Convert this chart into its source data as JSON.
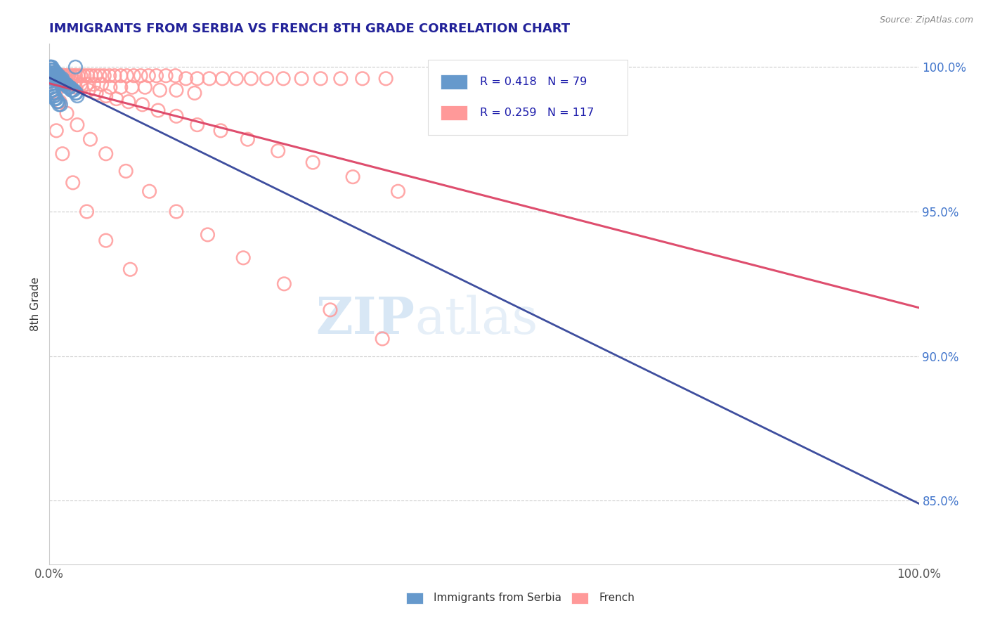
{
  "title": "IMMIGRANTS FROM SERBIA VS FRENCH 8TH GRADE CORRELATION CHART",
  "source_text": "Source: ZipAtlas.com",
  "ylabel": "8th Grade",
  "xlim": [
    0.0,
    1.0
  ],
  "ylim": [
    0.828,
    1.008
  ],
  "xticks": [
    0.0,
    0.25,
    0.5,
    0.75,
    1.0
  ],
  "xticklabels": [
    "0.0%",
    "",
    "",
    "",
    "100.0%"
  ],
  "yticks": [
    0.85,
    0.9,
    0.95,
    1.0
  ],
  "right_yticklabels": [
    "85.0%",
    "90.0%",
    "95.0%",
    "100.0%"
  ],
  "serbia_color": "#6699cc",
  "serbia_edge": "#5588bb",
  "french_color": "#ff9999",
  "french_edge": "#ee7788",
  "trendline_serbia_color": "#334499",
  "trendline_french_color": "#dd4466",
  "serbia_R": 0.418,
  "serbia_N": 79,
  "french_R": 0.259,
  "french_N": 117,
  "legend_serbia_label": "Immigrants from Serbia",
  "legend_french_label": "French",
  "watermark_zip": "ZIP",
  "watermark_atlas": "atlas",
  "grid_color": "#cccccc",
  "serbia_x": [
    0.001,
    0.001,
    0.001,
    0.001,
    0.002,
    0.002,
    0.002,
    0.002,
    0.002,
    0.003,
    0.003,
    0.003,
    0.003,
    0.003,
    0.004,
    0.004,
    0.004,
    0.004,
    0.005,
    0.005,
    0.005,
    0.005,
    0.006,
    0.006,
    0.006,
    0.007,
    0.007,
    0.007,
    0.008,
    0.008,
    0.008,
    0.009,
    0.009,
    0.01,
    0.01,
    0.011,
    0.011,
    0.012,
    0.012,
    0.013,
    0.013,
    0.014,
    0.015,
    0.015,
    0.016,
    0.017,
    0.018,
    0.019,
    0.02,
    0.021,
    0.022,
    0.023,
    0.024,
    0.025,
    0.026,
    0.027,
    0.028,
    0.03,
    0.031,
    0.032,
    0.001,
    0.001,
    0.002,
    0.002,
    0.003,
    0.003,
    0.004,
    0.004,
    0.005,
    0.005,
    0.006,
    0.006,
    0.007,
    0.008,
    0.009,
    0.01,
    0.011,
    0.013,
    0.03
  ],
  "serbia_y": [
    1.0,
    1.0,
    0.999,
    0.998,
    1.0,
    0.999,
    0.998,
    0.997,
    0.996,
    1.0,
    0.999,
    0.998,
    0.997,
    0.996,
    0.999,
    0.998,
    0.997,
    0.996,
    0.999,
    0.998,
    0.997,
    0.996,
    0.998,
    0.997,
    0.996,
    0.998,
    0.997,
    0.996,
    0.998,
    0.997,
    0.996,
    0.997,
    0.996,
    0.997,
    0.996,
    0.997,
    0.996,
    0.996,
    0.995,
    0.996,
    0.995,
    0.995,
    0.996,
    0.995,
    0.995,
    0.994,
    0.994,
    0.994,
    0.994,
    0.993,
    0.993,
    0.993,
    0.993,
    0.992,
    0.992,
    0.992,
    0.992,
    0.991,
    0.991,
    0.99,
    0.995,
    0.994,
    0.994,
    0.993,
    0.993,
    0.992,
    0.992,
    0.991,
    0.991,
    0.99,
    0.99,
    0.989,
    0.989,
    0.989,
    0.988,
    0.988,
    0.987,
    0.987,
    1.0
  ],
  "french_x": [
    0.001,
    0.002,
    0.003,
    0.004,
    0.005,
    0.006,
    0.007,
    0.008,
    0.009,
    0.01,
    0.012,
    0.014,
    0.016,
    0.018,
    0.02,
    0.022,
    0.025,
    0.028,
    0.03,
    0.033,
    0.036,
    0.04,
    0.044,
    0.048,
    0.053,
    0.058,
    0.063,
    0.069,
    0.075,
    0.082,
    0.089,
    0.097,
    0.105,
    0.114,
    0.123,
    0.134,
    0.145,
    0.157,
    0.17,
    0.184,
    0.199,
    0.215,
    0.232,
    0.25,
    0.269,
    0.29,
    0.312,
    0.335,
    0.36,
    0.387,
    0.004,
    0.006,
    0.008,
    0.01,
    0.013,
    0.016,
    0.02,
    0.025,
    0.03,
    0.036,
    0.043,
    0.051,
    0.06,
    0.07,
    0.082,
    0.095,
    0.11,
    0.127,
    0.146,
    0.167,
    0.002,
    0.003,
    0.005,
    0.007,
    0.009,
    0.012,
    0.015,
    0.019,
    0.024,
    0.03,
    0.037,
    0.045,
    0.054,
    0.065,
    0.077,
    0.091,
    0.107,
    0.125,
    0.146,
    0.17,
    0.197,
    0.228,
    0.263,
    0.303,
    0.349,
    0.401,
    0.003,
    0.007,
    0.012,
    0.02,
    0.032,
    0.047,
    0.065,
    0.088,
    0.115,
    0.146,
    0.182,
    0.223,
    0.27,
    0.323,
    0.383,
    0.008,
    0.015,
    0.027,
    0.043,
    0.065,
    0.093
  ],
  "french_y": [
    0.999,
    0.999,
    0.998,
    0.998,
    0.998,
    0.998,
    0.997,
    0.997,
    0.997,
    0.997,
    0.997,
    0.997,
    0.997,
    0.997,
    0.997,
    0.997,
    0.997,
    0.997,
    0.997,
    0.997,
    0.997,
    0.997,
    0.997,
    0.997,
    0.997,
    0.997,
    0.997,
    0.997,
    0.997,
    0.997,
    0.997,
    0.997,
    0.997,
    0.997,
    0.997,
    0.997,
    0.997,
    0.996,
    0.996,
    0.996,
    0.996,
    0.996,
    0.996,
    0.996,
    0.996,
    0.996,
    0.996,
    0.996,
    0.996,
    0.996,
    0.996,
    0.996,
    0.996,
    0.996,
    0.995,
    0.995,
    0.995,
    0.995,
    0.995,
    0.994,
    0.994,
    0.994,
    0.994,
    0.993,
    0.993,
    0.993,
    0.993,
    0.992,
    0.992,
    0.991,
    0.998,
    0.998,
    0.997,
    0.997,
    0.996,
    0.996,
    0.995,
    0.995,
    0.994,
    0.993,
    0.993,
    0.992,
    0.991,
    0.99,
    0.989,
    0.988,
    0.987,
    0.985,
    0.983,
    0.98,
    0.978,
    0.975,
    0.971,
    0.967,
    0.962,
    0.957,
    0.993,
    0.991,
    0.988,
    0.984,
    0.98,
    0.975,
    0.97,
    0.964,
    0.957,
    0.95,
    0.942,
    0.934,
    0.925,
    0.916,
    0.906,
    0.978,
    0.97,
    0.96,
    0.95,
    0.94,
    0.93
  ]
}
